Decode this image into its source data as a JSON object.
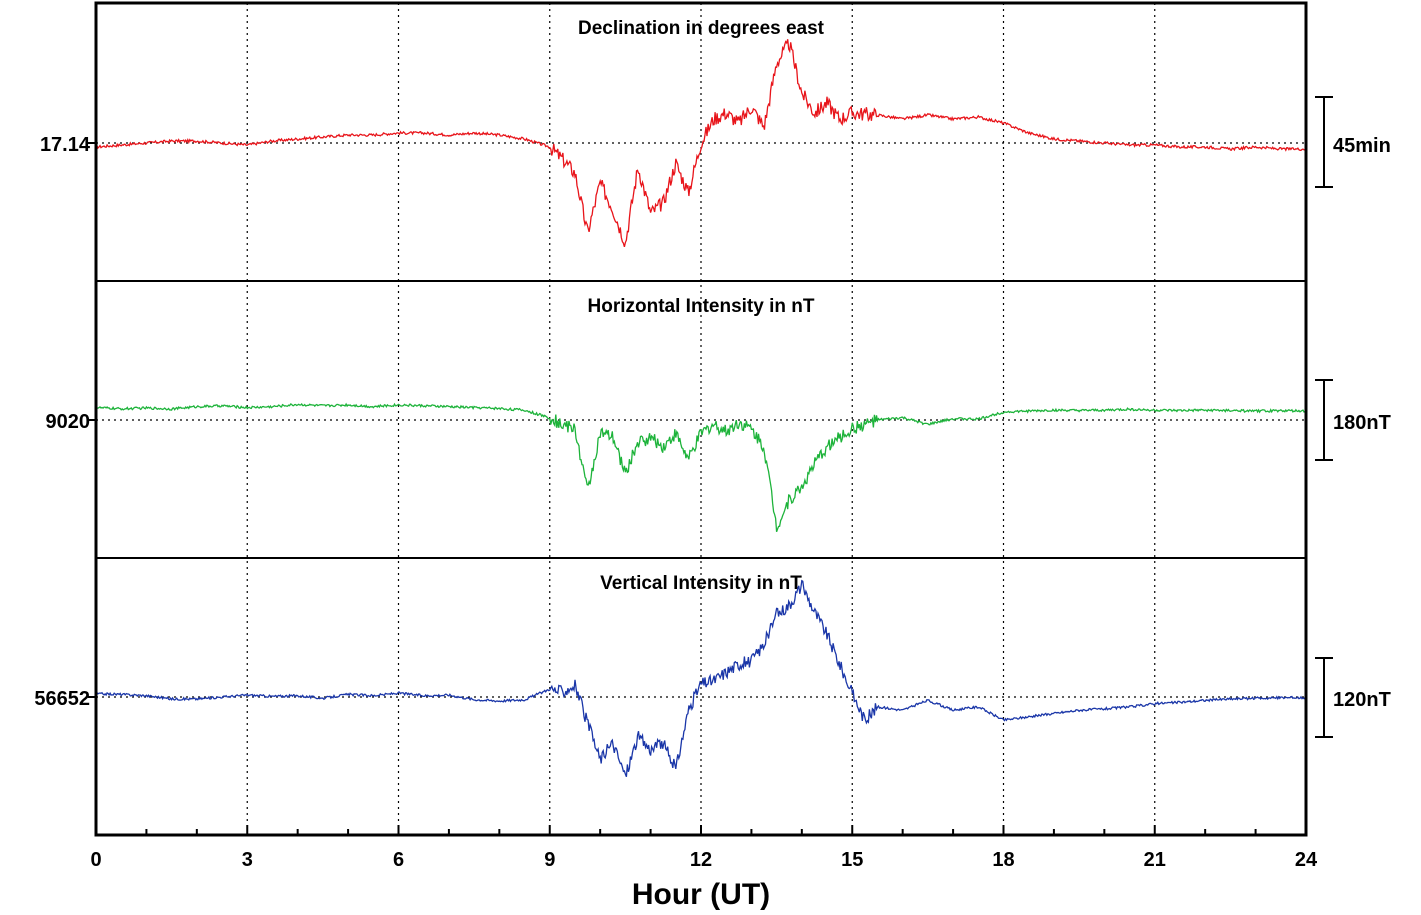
{
  "chart_data": [
    {
      "type": "line",
      "title": "Declination in degrees east",
      "color": "#e8141a",
      "baseline_label": "17.14",
      "scale_label": "45min",
      "baseline_value_deg": 17.14,
      "scale_bar_span": 45,
      "x": [
        0,
        0.5,
        1,
        1.5,
        2,
        2.5,
        3,
        3.5,
        4,
        4.5,
        5,
        5.5,
        6,
        6.5,
        7,
        7.5,
        8,
        8.5,
        9,
        9.25,
        9.5,
        9.75,
        10,
        10.25,
        10.5,
        10.75,
        11,
        11.25,
        11.5,
        11.75,
        12,
        12.25,
        12.5,
        12.75,
        13,
        13.25,
        13.5,
        13.75,
        14,
        14.25,
        14.5,
        14.75,
        15,
        15.5,
        16,
        16.5,
        17,
        17.5,
        18,
        18.5,
        19,
        19.5,
        20,
        20.5,
        21,
        21.5,
        22,
        22.5,
        23,
        23.5,
        24
      ],
      "values": [
        -2,
        -1,
        0,
        1,
        1,
        0,
        -1,
        1,
        2,
        3,
        4,
        4,
        5,
        5,
        4,
        5,
        4,
        2,
        -2,
        -8,
        -15,
        -45,
        -20,
        -33,
        -50,
        -12,
        -35,
        -30,
        -10,
        -25,
        0,
        12,
        15,
        10,
        18,
        8,
        40,
        50,
        25,
        15,
        20,
        12,
        15,
        14,
        12,
        14,
        12,
        13,
        10,
        5,
        2,
        1,
        0,
        -1,
        -1,
        -2,
        -2,
        -3,
        -2,
        -3,
        -3
      ],
      "ylim": [
        -60,
        60
      ]
    },
    {
      "type": "line",
      "title": "Horizontal Intensity in nT",
      "color": "#1db33a",
      "baseline_label": "9020",
      "scale_label": "180nT",
      "baseline_value_nT": 9020,
      "scale_bar_span": 180,
      "x": [
        0,
        0.5,
        1,
        1.5,
        2,
        2.5,
        3,
        3.5,
        4,
        4.5,
        5,
        5.5,
        6,
        6.5,
        7,
        7.5,
        8,
        8.5,
        9,
        9.25,
        9.5,
        9.75,
        10,
        10.25,
        10.5,
        10.75,
        11,
        11.25,
        11.5,
        11.75,
        12,
        12.25,
        12.5,
        12.75,
        13,
        13.25,
        13.5,
        13.75,
        14,
        14.25,
        14.5,
        14.75,
        15,
        15.5,
        16,
        16.5,
        17,
        17.5,
        18,
        18.5,
        19,
        19.5,
        20,
        20.5,
        21,
        21.5,
        22,
        22.5,
        23,
        23.5,
        24
      ],
      "values": [
        28,
        25,
        27,
        25,
        30,
        32,
        28,
        30,
        35,
        32,
        34,
        30,
        34,
        32,
        30,
        28,
        26,
        22,
        5,
        -10,
        -20,
        -160,
        -30,
        -40,
        -120,
        -50,
        -40,
        -60,
        -30,
        -90,
        -30,
        -10,
        -25,
        -5,
        -20,
        -60,
        -240,
        -180,
        -150,
        -100,
        -60,
        -40,
        -20,
        0,
        5,
        -10,
        3,
        2,
        18,
        20,
        22,
        21,
        22,
        24,
        22,
        21,
        22,
        21,
        20,
        21,
        20
      ],
      "ylim": [
        -300,
        150
      ]
    },
    {
      "type": "line",
      "title": "Vertical Intensity in nT",
      "color": "#1a36a8",
      "baseline_label": "56652",
      "scale_label": "120nT",
      "baseline_value_nT": 56652,
      "scale_bar_span": 120,
      "x": [
        0,
        0.5,
        1,
        1.5,
        2,
        2.5,
        3,
        3.5,
        4,
        4.5,
        5,
        5.5,
        6,
        6.5,
        7,
        7.5,
        8,
        8.5,
        9,
        9.25,
        9.5,
        9.75,
        10,
        10.25,
        10.5,
        10.75,
        11,
        11.25,
        11.5,
        11.75,
        12,
        12.25,
        12.5,
        12.75,
        13,
        13.25,
        13.5,
        13.75,
        14,
        14.25,
        14.5,
        14.75,
        15,
        15.25,
        15.5,
        16,
        16.5,
        17,
        17.5,
        18,
        18.5,
        19,
        19.5,
        20,
        20.5,
        21,
        21.5,
        22,
        22.5,
        23,
        23.5,
        24
      ],
      "values": [
        5,
        4,
        2,
        -3,
        -3,
        0,
        3,
        1,
        2,
        -2,
        4,
        2,
        6,
        2,
        3,
        -4,
        -6,
        -4,
        12,
        8,
        18,
        -40,
        -95,
        -70,
        -120,
        -60,
        -80,
        -70,
        -110,
        -20,
        20,
        25,
        38,
        50,
        55,
        80,
        125,
        140,
        170,
        130,
        95,
        50,
        5,
        -35,
        -15,
        -20,
        -5,
        -20,
        -15,
        -35,
        -30,
        -25,
        -20,
        -18,
        -15,
        -10,
        -8,
        -5,
        -3,
        -2,
        -1,
        -1
      ],
      "ylim": [
        -190,
        190
      ]
    }
  ],
  "x_axis": {
    "label": "Hour (UT)",
    "ticks": [
      "0",
      "3",
      "6",
      "9",
      "12",
      "15",
      "18",
      "21",
      "24"
    ],
    "range": [
      0,
      24
    ]
  }
}
